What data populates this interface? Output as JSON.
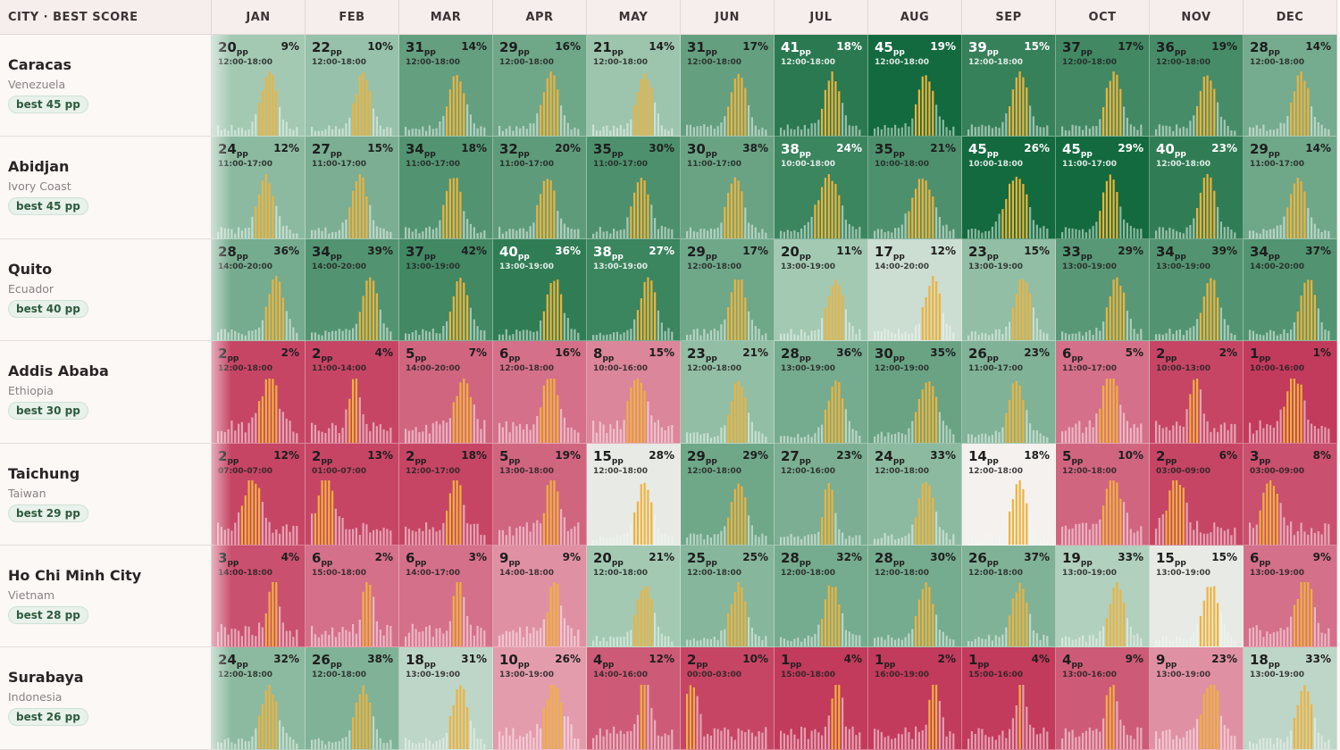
{
  "header": {
    "first": "CITY · BEST SCORE"
  },
  "months": [
    "JAN",
    "FEB",
    "MAR",
    "APR",
    "MAY",
    "JUN",
    "JUL",
    "AUG",
    "SEP",
    "OCT",
    "NOV",
    "DEC"
  ],
  "unit": "pp",
  "rows": [
    {
      "name": "Caracas",
      "country": "Venezuela",
      "best": "best 45 pp",
      "cells": [
        {
          "score": 20,
          "pct": "9%",
          "time": "12:00-18:00"
        },
        {
          "score": 22,
          "pct": "10%",
          "time": "12:00-18:00"
        },
        {
          "score": 31,
          "pct": "14%",
          "time": "12:00-18:00"
        },
        {
          "score": 29,
          "pct": "16%",
          "time": "12:00-18:00"
        },
        {
          "score": 21,
          "pct": "14%",
          "time": "12:00-18:00"
        },
        {
          "score": 31,
          "pct": "17%",
          "time": "12:00-18:00"
        },
        {
          "score": 41,
          "pct": "18%",
          "time": "12:00-18:00"
        },
        {
          "score": 45,
          "pct": "19%",
          "time": "12:00-18:00"
        },
        {
          "score": 39,
          "pct": "15%",
          "time": "12:00-18:00"
        },
        {
          "score": 37,
          "pct": "17%",
          "time": "12:00-18:00"
        },
        {
          "score": 36,
          "pct": "19%",
          "time": "12:00-18:00"
        },
        {
          "score": 28,
          "pct": "14%",
          "time": "12:00-18:00"
        }
      ]
    },
    {
      "name": "Abidjan",
      "country": "Ivory Coast",
      "best": "best 45 pp",
      "cells": [
        {
          "score": 24,
          "pct": "12%",
          "time": "11:00-17:00"
        },
        {
          "score": 27,
          "pct": "15%",
          "time": "11:00-17:00"
        },
        {
          "score": 34,
          "pct": "18%",
          "time": "11:00-17:00"
        },
        {
          "score": 32,
          "pct": "20%",
          "time": "11:00-17:00"
        },
        {
          "score": 35,
          "pct": "30%",
          "time": "11:00-17:00"
        },
        {
          "score": 30,
          "pct": "38%",
          "time": "11:00-17:00"
        },
        {
          "score": 38,
          "pct": "24%",
          "time": "10:00-18:00"
        },
        {
          "score": 35,
          "pct": "21%",
          "time": "10:00-18:00"
        },
        {
          "score": 45,
          "pct": "26%",
          "time": "10:00-18:00"
        },
        {
          "score": 45,
          "pct": "29%",
          "time": "11:00-17:00"
        },
        {
          "score": 40,
          "pct": "23%",
          "time": "12:00-18:00"
        },
        {
          "score": 29,
          "pct": "14%",
          "time": "11:00-17:00"
        }
      ]
    },
    {
      "name": "Quito",
      "country": "Ecuador",
      "best": "best 40 pp",
      "cells": [
        {
          "score": 28,
          "pct": "36%",
          "time": "14:00-20:00"
        },
        {
          "score": 34,
          "pct": "39%",
          "time": "14:00-20:00"
        },
        {
          "score": 37,
          "pct": "42%",
          "time": "13:00-19:00"
        },
        {
          "score": 40,
          "pct": "36%",
          "time": "13:00-19:00"
        },
        {
          "score": 38,
          "pct": "27%",
          "time": "13:00-19:00"
        },
        {
          "score": 29,
          "pct": "17%",
          "time": "12:00-18:00"
        },
        {
          "score": 20,
          "pct": "11%",
          "time": "13:00-19:00"
        },
        {
          "score": 17,
          "pct": "12%",
          "time": "14:00-20:00"
        },
        {
          "score": 23,
          "pct": "15%",
          "time": "13:00-19:00"
        },
        {
          "score": 33,
          "pct": "29%",
          "time": "13:00-19:00"
        },
        {
          "score": 34,
          "pct": "39%",
          "time": "13:00-19:00"
        },
        {
          "score": 34,
          "pct": "37%",
          "time": "14:00-20:00"
        }
      ]
    },
    {
      "name": "Addis Ababa",
      "country": "Ethiopia",
      "best": "best 30 pp",
      "cells": [
        {
          "score": 2,
          "pct": "2%",
          "time": "12:00-18:00"
        },
        {
          "score": 2,
          "pct": "4%",
          "time": "11:00-14:00"
        },
        {
          "score": 5,
          "pct": "7%",
          "time": "14:00-20:00"
        },
        {
          "score": 6,
          "pct": "16%",
          "time": "12:00-18:00"
        },
        {
          "score": 8,
          "pct": "15%",
          "time": "10:00-16:00"
        },
        {
          "score": 23,
          "pct": "21%",
          "time": "12:00-18:00"
        },
        {
          "score": 28,
          "pct": "36%",
          "time": "13:00-19:00"
        },
        {
          "score": 30,
          "pct": "35%",
          "time": "12:00-19:00"
        },
        {
          "score": 26,
          "pct": "23%",
          "time": "11:00-17:00"
        },
        {
          "score": 6,
          "pct": "5%",
          "time": "11:00-17:00"
        },
        {
          "score": 2,
          "pct": "2%",
          "time": "10:00-13:00"
        },
        {
          "score": 1,
          "pct": "1%",
          "time": "10:00-16:00"
        }
      ]
    },
    {
      "name": "Taichung",
      "country": "Taiwan",
      "best": "best 29 pp",
      "cells": [
        {
          "score": 2,
          "pct": "12%",
          "time": "07:00-07:00"
        },
        {
          "score": 2,
          "pct": "13%",
          "time": "01:00-07:00"
        },
        {
          "score": 2,
          "pct": "18%",
          "time": "12:00-17:00"
        },
        {
          "score": 5,
          "pct": "19%",
          "time": "13:00-18:00"
        },
        {
          "score": 15,
          "pct": "28%",
          "time": "12:00-18:00"
        },
        {
          "score": 29,
          "pct": "29%",
          "time": "12:00-18:00"
        },
        {
          "score": 27,
          "pct": "23%",
          "time": "12:00-16:00"
        },
        {
          "score": 24,
          "pct": "33%",
          "time": "12:00-18:00"
        },
        {
          "score": 14,
          "pct": "18%",
          "time": "12:00-18:00"
        },
        {
          "score": 5,
          "pct": "10%",
          "time": "12:00-18:00"
        },
        {
          "score": 2,
          "pct": "6%",
          "time": "03:00-09:00"
        },
        {
          "score": 3,
          "pct": "8%",
          "time": "03:00-09:00"
        }
      ]
    },
    {
      "name": "Ho Chi Minh City",
      "country": "Vietnam",
      "best": "best 28 pp",
      "cells": [
        {
          "score": 3,
          "pct": "4%",
          "time": "14:00-18:00"
        },
        {
          "score": 6,
          "pct": "2%",
          "time": "15:00-18:00"
        },
        {
          "score": 6,
          "pct": "3%",
          "time": "14:00-17:00"
        },
        {
          "score": 9,
          "pct": "9%",
          "time": "14:00-18:00"
        },
        {
          "score": 20,
          "pct": "21%",
          "time": "12:00-18:00"
        },
        {
          "score": 25,
          "pct": "25%",
          "time": "12:00-18:00"
        },
        {
          "score": 28,
          "pct": "32%",
          "time": "12:00-18:00"
        },
        {
          "score": 28,
          "pct": "30%",
          "time": "12:00-18:00"
        },
        {
          "score": 26,
          "pct": "37%",
          "time": "12:00-18:00"
        },
        {
          "score": 19,
          "pct": "33%",
          "time": "13:00-19:00"
        },
        {
          "score": 15,
          "pct": "15%",
          "time": "13:00-19:00"
        },
        {
          "score": 6,
          "pct": "9%",
          "time": "13:00-19:00"
        }
      ]
    },
    {
      "name": "Surabaya",
      "country": "Indonesia",
      "best": "best 26 pp",
      "cells": [
        {
          "score": 24,
          "pct": "32%",
          "time": "12:00-18:00"
        },
        {
          "score": 26,
          "pct": "38%",
          "time": "12:00-18:00"
        },
        {
          "score": 18,
          "pct": "31%",
          "time": "13:00-19:00"
        },
        {
          "score": 10,
          "pct": "26%",
          "time": "13:00-19:00"
        },
        {
          "score": 4,
          "pct": "12%",
          "time": "14:00-16:00"
        },
        {
          "score": 2,
          "pct": "10%",
          "time": "00:00-03:00"
        },
        {
          "score": 1,
          "pct": "4%",
          "time": "15:00-18:00"
        },
        {
          "score": 1,
          "pct": "2%",
          "time": "16:00-19:00"
        },
        {
          "score": 1,
          "pct": "4%",
          "time": "15:00-16:00"
        },
        {
          "score": 4,
          "pct": "9%",
          "time": "13:00-16:00"
        },
        {
          "score": 9,
          "pct": "23%",
          "time": "13:00-19:00"
        },
        {
          "score": 18,
          "pct": "33%",
          "time": "13:00-19:00"
        }
      ]
    }
  ],
  "colors": {
    "highlight": "#f0b23a",
    "good_dark": "#136a3e",
    "good_light": "#cfe3d6",
    "bad": "#c23a5c",
    "neutral": "#f4f1ef"
  }
}
